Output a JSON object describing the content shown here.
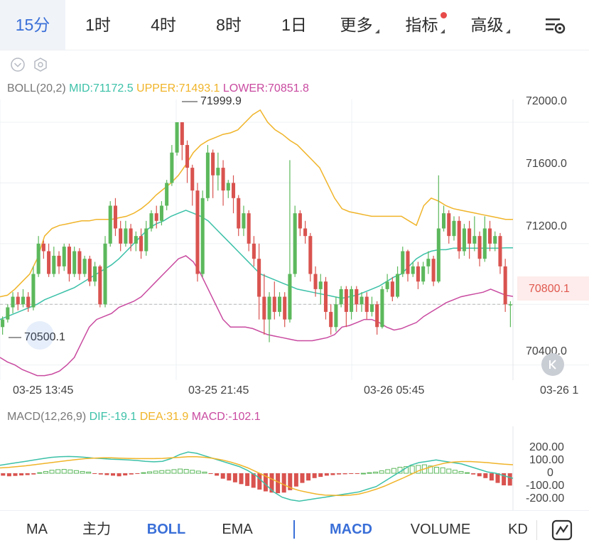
{
  "top_tabs": {
    "items": [
      {
        "label": "15分",
        "active": true
      },
      {
        "label": "1时"
      },
      {
        "label": "4时"
      },
      {
        "label": "8时"
      },
      {
        "label": "1日"
      },
      {
        "label": "更多"
      },
      {
        "label": "指标"
      },
      {
        "label": "高级"
      }
    ],
    "settings_icon": "chart-settings-icon"
  },
  "boll": {
    "title": "BOLL(20,2)",
    "mid": "MID:71172.5",
    "upper": "UPPER:71493.1",
    "lower": "LOWER:70851.8",
    "colors": {
      "mid": "#3cc1a8",
      "upper": "#f0b429",
      "lower": "#c94aa0"
    }
  },
  "price_axis": {
    "ticks": [
      "72000.0",
      "71600.0",
      "71200.0",
      "70400.0"
    ],
    "current_price": "70800.1",
    "high_marker": "71999.9",
    "low_marker": "70500.1"
  },
  "time_axis": {
    "ticks": [
      "03-25 13:45",
      "03-25 21:45",
      "03-26 05:45",
      "03-26 1"
    ]
  },
  "macd": {
    "title": "MACD(12,26,9)",
    "dif": "DIF:-19.1",
    "dea": "DEA:31.9",
    "macd": "MACD:-102.1",
    "axis": [
      "200.00",
      "100.00",
      "0",
      "-100.00",
      "-200.00"
    ],
    "colors": {
      "dif": "#3cc1a8",
      "dea": "#f0b429",
      "up": "#5cb85c",
      "down": "#d9534f"
    }
  },
  "bottom_tabs": {
    "items": [
      {
        "label": "MA"
      },
      {
        "label": "主力"
      },
      {
        "label": "BOLL",
        "active": true
      },
      {
        "label": "EMA"
      },
      {
        "label": "MACD",
        "active": true
      },
      {
        "label": "VOLUME"
      },
      {
        "label": "KD"
      }
    ],
    "draw_icon": "draw-line-icon"
  },
  "chart_data": {
    "type": "candlestick",
    "ylim": [
      70300,
      72150
    ],
    "grid": true,
    "candles": [
      [
        70650,
        70700,
        70600,
        70720
      ],
      [
        70700,
        70780,
        70680,
        70800
      ],
      [
        70780,
        70850,
        70740,
        70880
      ],
      [
        70850,
        70800,
        70760,
        70880
      ],
      [
        70800,
        70850,
        70780,
        70900
      ],
      [
        70850,
        70780,
        70750,
        70880
      ],
      [
        70780,
        71000,
        70760,
        71050
      ],
      [
        71000,
        71200,
        70980,
        71250
      ],
      [
        71200,
        71150,
        71100,
        71220
      ],
      [
        71150,
        71000,
        70980,
        71200
      ],
      [
        71000,
        71120,
        70980,
        71180
      ],
      [
        71120,
        71050,
        71000,
        71150
      ],
      [
        71050,
        71180,
        71020,
        71200
      ],
      [
        71180,
        71000,
        70950,
        71200
      ],
      [
        71000,
        71150,
        70980,
        71180
      ],
      [
        71150,
        71000,
        70960,
        71170
      ],
      [
        71000,
        71100,
        70980,
        71120
      ],
      [
        71100,
        70950,
        70920,
        71120
      ],
      [
        70950,
        71050,
        70920,
        71080
      ],
      [
        71050,
        70800,
        70780,
        71060
      ],
      [
        70800,
        71200,
        70780,
        71250
      ],
      [
        71200,
        71450,
        71180,
        71480
      ],
      [
        71450,
        71300,
        71250,
        71500
      ],
      [
        71300,
        71200,
        71150,
        71350
      ],
      [
        71200,
        71300,
        71180,
        71350
      ],
      [
        71300,
        71200,
        71150,
        71330
      ],
      [
        71200,
        71250,
        71150,
        71280
      ],
      [
        71250,
        71150,
        71100,
        71300
      ],
      [
        71150,
        71300,
        71120,
        71350
      ],
      [
        71300,
        71400,
        71280,
        71420
      ],
      [
        71400,
        71350,
        71300,
        71450
      ],
      [
        71350,
        71450,
        71320,
        71480
      ],
      [
        71450,
        71600,
        71420,
        71620
      ],
      [
        71600,
        71800,
        71580,
        71850
      ],
      [
        71800,
        72000,
        71780,
        72000
      ],
      [
        72000,
        71850,
        71750,
        72000
      ],
      [
        71850,
        71700,
        71600,
        71880
      ],
      [
        71700,
        71550,
        71450,
        71720
      ],
      [
        71550,
        71000,
        70950,
        71600
      ],
      [
        71000,
        71500,
        70980,
        71550
      ],
      [
        71500,
        71800,
        71480,
        71850
      ],
      [
        71800,
        71650,
        71500,
        71820
      ],
      [
        71650,
        71700,
        71550,
        71800
      ],
      [
        71700,
        71550,
        71450,
        71750
      ],
      [
        71550,
        71600,
        71500,
        71620
      ],
      [
        71600,
        71500,
        71400,
        71650
      ],
      [
        71500,
        71300,
        71250,
        71520
      ],
      [
        71300,
        71400,
        71250,
        71450
      ],
      [
        71400,
        71200,
        71150,
        71420
      ],
      [
        71200,
        71100,
        71050,
        71250
      ],
      [
        71100,
        70850,
        70700,
        71200
      ],
      [
        70850,
        70700,
        70600,
        71000
      ],
      [
        70700,
        70850,
        70550,
        70880
      ],
      [
        70850,
        70750,
        70700,
        70950
      ],
      [
        70750,
        70850,
        70720,
        70880
      ],
      [
        70850,
        70700,
        70650,
        70880
      ],
      [
        70700,
        71000,
        70680,
        71750
      ],
      [
        71000,
        71400,
        70980,
        71450
      ],
      [
        71400,
        71300,
        71250,
        71420
      ],
      [
        71300,
        71250,
        71200,
        71350
      ],
      [
        71250,
        71000,
        70950,
        71270
      ],
      [
        71000,
        70900,
        70850,
        71050
      ],
      [
        70900,
        70950,
        70800,
        71000
      ],
      [
        70950,
        70750,
        70700,
        70980
      ],
      [
        70750,
        70650,
        70600,
        70800
      ],
      [
        70650,
        70800,
        70620,
        70850
      ],
      [
        70800,
        70900,
        70780,
        70920
      ],
      [
        70900,
        70750,
        70650,
        70920
      ],
      [
        70750,
        70900,
        70700,
        70920
      ],
      [
        70900,
        70800,
        70750,
        70920
      ],
      [
        70800,
        70850,
        70750,
        70880
      ],
      [
        70850,
        70750,
        70700,
        70880
      ],
      [
        70750,
        70800,
        70720,
        70850
      ],
      [
        70800,
        70650,
        70600,
        70820
      ],
      [
        70650,
        70900,
        70640,
        70920
      ],
      [
        70900,
        70950,
        70880,
        71000
      ],
      [
        70950,
        70850,
        70820,
        70980
      ],
      [
        70850,
        71000,
        70840,
        71050
      ],
      [
        71000,
        71150,
        70980,
        71180
      ],
      [
        71150,
        71000,
        70950,
        71160
      ],
      [
        71000,
        71050,
        70980,
        71080
      ],
      [
        71050,
        70950,
        70900,
        71080
      ],
      [
        70950,
        71050,
        70930,
        71080
      ],
      [
        71050,
        71100,
        71000,
        71150
      ],
      [
        71100,
        70950,
        70920,
        71120
      ],
      [
        70950,
        71300,
        70940,
        71650
      ],
      [
        71300,
        71400,
        71280,
        71450
      ],
      [
        71400,
        71250,
        71200,
        71420
      ],
      [
        71250,
        71350,
        71220,
        71380
      ],
      [
        71350,
        71150,
        71100,
        71380
      ],
      [
        71150,
        71300,
        71120,
        71330
      ],
      [
        71300,
        71200,
        71100,
        71350
      ],
      [
        71200,
        71250,
        71150,
        71380
      ],
      [
        71250,
        71100,
        71050,
        71280
      ],
      [
        71100,
        71300,
        71080,
        71380
      ],
      [
        71300,
        71200,
        71150,
        71350
      ],
      [
        71200,
        71250,
        71150,
        71280
      ],
      [
        71250,
        71050,
        71000,
        71270
      ],
      [
        71050,
        70800,
        70750,
        71100
      ],
      [
        70800,
        70800,
        70650,
        70820
      ]
    ],
    "upper": [
      70850,
      70860,
      70900,
      70950,
      71000,
      71100,
      71250,
      71300,
      71320,
      71330,
      71340,
      71350,
      71350,
      71360,
      71360,
      71360,
      71370,
      71380,
      71400,
      71430,
      71470,
      71520,
      71560,
      71600,
      71650,
      71720,
      71800,
      71850,
      71880,
      71900,
      71920,
      71930,
      71950,
      72000,
      72050,
      72080,
      72000,
      71950,
      71920,
      71880,
      71850,
      71800,
      71750,
      71700,
      71600,
      71500,
      71430,
      71410,
      71400,
      71390,
      71380,
      71380,
      71380,
      71380,
      71380,
      71350,
      71320,
      71450,
      71500,
      71480,
      71450,
      71430,
      71420,
      71410,
      71400,
      71390,
      71380,
      71370,
      71360,
      71360
    ],
    "mid": [
      70700,
      70720,
      70740,
      70760,
      70780,
      70800,
      70830,
      70850,
      70870,
      70890,
      70910,
      70940,
      70970,
      71000,
      71030,
      71060,
      71100,
      71150,
      71200,
      71250,
      71300,
      71330,
      71350,
      71380,
      71400,
      71420,
      71400,
      71380,
      71350,
      71300,
      71250,
      71200,
      71150,
      71100,
      71050,
      71000,
      70980,
      70960,
      70940,
      70920,
      70900,
      70890,
      70880,
      70870,
      70860,
      70850,
      70840,
      70850,
      70860,
      70880,
      70900,
      70920,
      70950,
      70980,
      71000,
      71050,
      71100,
      71130,
      71150,
      71160,
      71160,
      71170,
      71170,
      71170,
      71170,
      71170,
      71170,
      71170,
      71172,
      71172
    ],
    "lower": [
      70450,
      70420,
      70400,
      70370,
      70350,
      70330,
      70330,
      70340,
      70360,
      70400,
      70450,
      70550,
      70650,
      70700,
      70720,
      70740,
      70780,
      70800,
      70820,
      70850,
      70900,
      70950,
      71000,
      71050,
      71100,
      71120,
      71080,
      71000,
      70900,
      70800,
      70700,
      70650,
      70650,
      70650,
      70640,
      70620,
      70600,
      70590,
      70580,
      70570,
      70560,
      70560,
      70560,
      70570,
      70580,
      70600,
      70650,
      70660,
      70680,
      70700,
      70700,
      70680,
      70650,
      70630,
      70640,
      70660,
      70680,
      70720,
      70750,
      70780,
      70810,
      70830,
      70850,
      70860,
      70870,
      70880,
      70900,
      70880,
      70860,
      70852
    ],
    "macd_hist": [
      -20,
      -25,
      -22,
      -18,
      -15,
      -10,
      5,
      15,
      25,
      30,
      32,
      28,
      22,
      15,
      10,
      -5,
      -10,
      -15,
      -20,
      -25,
      -18,
      -10,
      -5,
      5,
      12,
      18,
      22,
      25,
      30,
      35,
      32,
      25,
      18,
      10,
      -5,
      -20,
      -45,
      -60,
      -75,
      -90,
      -105,
      -120,
      -135,
      -150,
      -160,
      -165,
      -160,
      -140,
      -110,
      -80,
      -60,
      -40,
      -30,
      -20,
      -15,
      -10,
      -8,
      -5,
      -3,
      0,
      5,
      10,
      20,
      30,
      40,
      50,
      55,
      60,
      65,
      70,
      60,
      50,
      45,
      35,
      25,
      15,
      5,
      -10,
      -25,
      -40,
      -60,
      -80,
      -100,
      -102
    ],
    "dif": [
      30,
      35,
      40,
      45,
      50,
      55,
      60,
      62,
      63,
      62,
      60,
      57,
      55,
      53,
      52,
      50,
      48,
      45,
      43,
      45,
      55,
      70,
      80,
      75,
      65,
      55,
      45,
      35,
      25,
      10,
      -10,
      -40,
      -70,
      -90,
      -100,
      -105,
      -100,
      -95,
      -90,
      -85,
      -80,
      -75,
      -70,
      -60,
      -50,
      -30,
      -10,
      10,
      30,
      40,
      45,
      50,
      45,
      40,
      35,
      25,
      15,
      5,
      0,
      -10,
      -19
    ],
    "dea": [
      20,
      22,
      25,
      28,
      32,
      36,
      40,
      44,
      48,
      52,
      55,
      57,
      58,
      58,
      57,
      56,
      55,
      55,
      55,
      56,
      58,
      60,
      62,
      62,
      60,
      56,
      50,
      42,
      32,
      20,
      5,
      -10,
      -25,
      -40,
      -55,
      -65,
      -72,
      -78,
      -82,
      -83,
      -84,
      -82,
      -78,
      -70,
      -60,
      -48,
      -34,
      -20,
      -5,
      10,
      20,
      30,
      38,
      42,
      44,
      44,
      42,
      40,
      37,
      34,
      32
    ]
  }
}
